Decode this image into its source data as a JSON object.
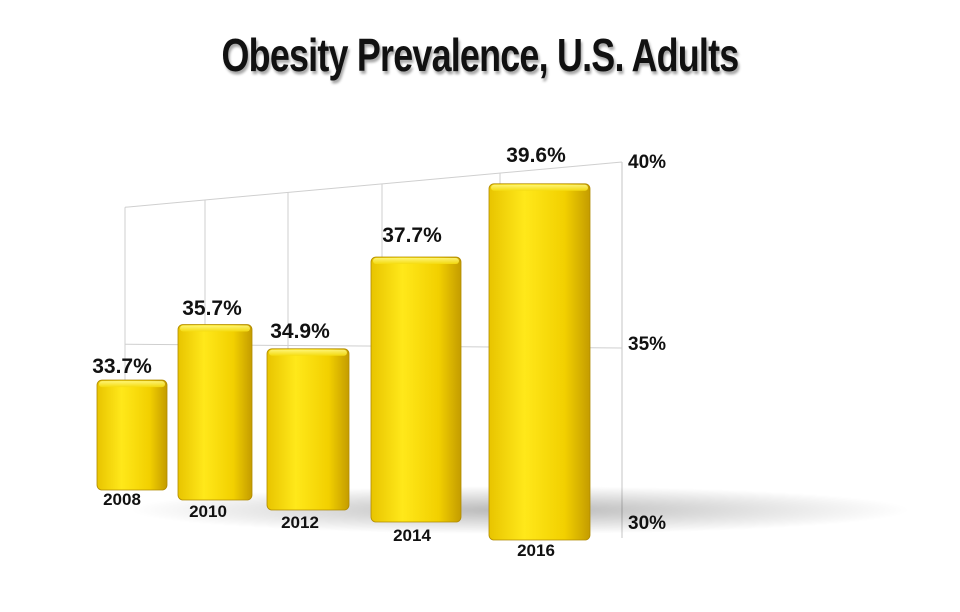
{
  "chart_data": {
    "type": "bar",
    "title": "Obesity Prevalence, U.S. Adults",
    "categories": [
      "2008",
      "2010",
      "2012",
      "2014",
      "2016"
    ],
    "values": [
      33.7,
      35.7,
      34.9,
      37.7,
      39.6
    ],
    "data_labels": [
      "33.7%",
      "35.7%",
      "34.9%",
      "37.7%",
      "39.6%"
    ],
    "y_ticks": [
      30,
      35,
      40
    ],
    "y_tick_labels": [
      "30%",
      "35%",
      "40%"
    ],
    "ylim": [
      30,
      40
    ],
    "xlabel": "",
    "ylabel": "",
    "grid": true,
    "style": "3d-perspective",
    "colors": {
      "bar": "#f5d800",
      "bar_light": "#fff35a",
      "bar_dark": "#c9a200",
      "grid": "#cfcfcf"
    }
  }
}
